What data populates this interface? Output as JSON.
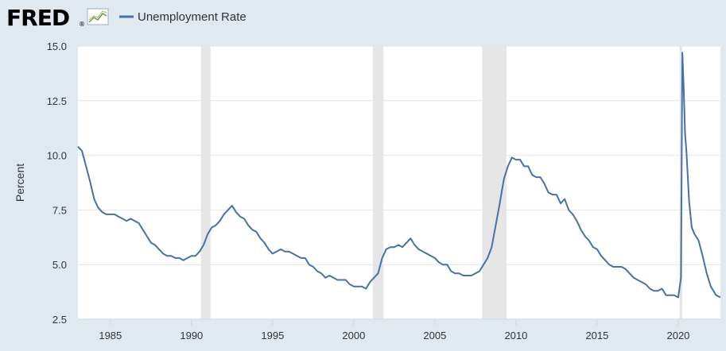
{
  "header": {
    "logo_text": "FRED",
    "logo_mark": "®",
    "logo_icon": "fred-graph-icon",
    "legend_label": "Unemployment Rate"
  },
  "chart_data": {
    "type": "line",
    "title": "",
    "xlabel": "",
    "ylabel": "Percent",
    "xlim": [
      1983.0,
      2022.6
    ],
    "ylim": [
      2.5,
      15.0
    ],
    "y_ticks": [
      2.5,
      5.0,
      7.5,
      10.0,
      12.5,
      15.0
    ],
    "y_tick_labels": [
      "2.5",
      "5.0",
      "7.5",
      "10.0",
      "12.5",
      "15.0"
    ],
    "x_ticks": [
      1985,
      1990,
      1995,
      2000,
      2005,
      2010,
      2015,
      2020
    ],
    "x_tick_labels": [
      "1985",
      "1990",
      "1995",
      "2000",
      "2005",
      "2010",
      "2015",
      "2020"
    ],
    "grid": "horizontal",
    "legend_position": "top-left",
    "recessions": [
      [
        1990.58,
        1991.17
      ],
      [
        2001.17,
        2001.83
      ],
      [
        2007.92,
        2009.42
      ],
      [
        2020.08,
        2020.25
      ]
    ],
    "colors": {
      "line": "#4572a7",
      "recession": "#e6e6e6",
      "background": "#e1e9f0",
      "plot": "#ffffff",
      "grid": "#e6e6e6"
    },
    "series": [
      {
        "name": "Unemployment Rate",
        "points": [
          [
            1983.0,
            10.4
          ],
          [
            1983.25,
            10.2
          ],
          [
            1983.5,
            9.5
          ],
          [
            1983.75,
            8.8
          ],
          [
            1984.0,
            8.0
          ],
          [
            1984.25,
            7.6
          ],
          [
            1984.5,
            7.4
          ],
          [
            1984.75,
            7.3
          ],
          [
            1985.0,
            7.3
          ],
          [
            1985.25,
            7.3
          ],
          [
            1985.5,
            7.2
          ],
          [
            1985.75,
            7.1
          ],
          [
            1986.0,
            7.0
          ],
          [
            1986.25,
            7.1
          ],
          [
            1986.5,
            7.0
          ],
          [
            1986.75,
            6.9
          ],
          [
            1987.0,
            6.6
          ],
          [
            1987.25,
            6.3
          ],
          [
            1987.5,
            6.0
          ],
          [
            1987.75,
            5.9
          ],
          [
            1988.0,
            5.7
          ],
          [
            1988.25,
            5.5
          ],
          [
            1988.5,
            5.4
          ],
          [
            1988.75,
            5.4
          ],
          [
            1989.0,
            5.3
          ],
          [
            1989.25,
            5.3
          ],
          [
            1989.5,
            5.2
          ],
          [
            1989.75,
            5.3
          ],
          [
            1990.0,
            5.4
          ],
          [
            1990.25,
            5.4
          ],
          [
            1990.5,
            5.6
          ],
          [
            1990.75,
            5.9
          ],
          [
            1991.0,
            6.4
          ],
          [
            1991.25,
            6.7
          ],
          [
            1991.5,
            6.8
          ],
          [
            1991.75,
            7.0
          ],
          [
            1992.0,
            7.3
          ],
          [
            1992.25,
            7.5
          ],
          [
            1992.5,
            7.7
          ],
          [
            1992.75,
            7.4
          ],
          [
            1993.0,
            7.2
          ],
          [
            1993.25,
            7.1
          ],
          [
            1993.5,
            6.8
          ],
          [
            1993.75,
            6.6
          ],
          [
            1994.0,
            6.5
          ],
          [
            1994.25,
            6.2
          ],
          [
            1994.5,
            6.0
          ],
          [
            1994.75,
            5.7
          ],
          [
            1995.0,
            5.5
          ],
          [
            1995.25,
            5.6
          ],
          [
            1995.5,
            5.7
          ],
          [
            1995.75,
            5.6
          ],
          [
            1996.0,
            5.6
          ],
          [
            1996.25,
            5.5
          ],
          [
            1996.5,
            5.4
          ],
          [
            1996.75,
            5.3
          ],
          [
            1997.0,
            5.3
          ],
          [
            1997.25,
            5.0
          ],
          [
            1997.5,
            4.9
          ],
          [
            1997.75,
            4.7
          ],
          [
            1998.0,
            4.6
          ],
          [
            1998.25,
            4.4
          ],
          [
            1998.5,
            4.5
          ],
          [
            1998.75,
            4.4
          ],
          [
            1999.0,
            4.3
          ],
          [
            1999.25,
            4.3
          ],
          [
            1999.5,
            4.3
          ],
          [
            1999.75,
            4.1
          ],
          [
            2000.0,
            4.0
          ],
          [
            2000.25,
            4.0
          ],
          [
            2000.5,
            4.0
          ],
          [
            2000.75,
            3.9
          ],
          [
            2001.0,
            4.2
          ],
          [
            2001.25,
            4.4
          ],
          [
            2001.5,
            4.6
          ],
          [
            2001.75,
            5.3
          ],
          [
            2002.0,
            5.7
          ],
          [
            2002.25,
            5.8
          ],
          [
            2002.5,
            5.8
          ],
          [
            2002.75,
            5.9
          ],
          [
            2003.0,
            5.8
          ],
          [
            2003.25,
            6.0
          ],
          [
            2003.5,
            6.2
          ],
          [
            2003.75,
            5.9
          ],
          [
            2004.0,
            5.7
          ],
          [
            2004.25,
            5.6
          ],
          [
            2004.5,
            5.5
          ],
          [
            2004.75,
            5.4
          ],
          [
            2005.0,
            5.3
          ],
          [
            2005.25,
            5.1
          ],
          [
            2005.5,
            5.0
          ],
          [
            2005.75,
            5.0
          ],
          [
            2006.0,
            4.7
          ],
          [
            2006.25,
            4.6
          ],
          [
            2006.5,
            4.6
          ],
          [
            2006.75,
            4.5
          ],
          [
            2007.0,
            4.5
          ],
          [
            2007.25,
            4.5
          ],
          [
            2007.5,
            4.6
          ],
          [
            2007.75,
            4.7
          ],
          [
            2008.0,
            5.0
          ],
          [
            2008.25,
            5.3
          ],
          [
            2008.5,
            5.8
          ],
          [
            2008.75,
            6.8
          ],
          [
            2009.0,
            7.8
          ],
          [
            2009.25,
            8.9
          ],
          [
            2009.5,
            9.5
          ],
          [
            2009.75,
            9.9
          ],
          [
            2010.0,
            9.8
          ],
          [
            2010.25,
            9.8
          ],
          [
            2010.5,
            9.5
          ],
          [
            2010.75,
            9.5
          ],
          [
            2011.0,
            9.1
          ],
          [
            2011.25,
            9.0
          ],
          [
            2011.5,
            9.0
          ],
          [
            2011.75,
            8.7
          ],
          [
            2012.0,
            8.3
          ],
          [
            2012.25,
            8.2
          ],
          [
            2012.5,
            8.2
          ],
          [
            2012.75,
            7.8
          ],
          [
            2013.0,
            8.0
          ],
          [
            2013.25,
            7.5
          ],
          [
            2013.5,
            7.3
          ],
          [
            2013.75,
            7.0
          ],
          [
            2014.0,
            6.6
          ],
          [
            2014.25,
            6.3
          ],
          [
            2014.5,
            6.1
          ],
          [
            2014.75,
            5.8
          ],
          [
            2015.0,
            5.7
          ],
          [
            2015.25,
            5.4
          ],
          [
            2015.5,
            5.2
          ],
          [
            2015.75,
            5.0
          ],
          [
            2016.0,
            4.9
          ],
          [
            2016.25,
            4.9
          ],
          [
            2016.5,
            4.9
          ],
          [
            2016.75,
            4.8
          ],
          [
            2017.0,
            4.6
          ],
          [
            2017.25,
            4.4
          ],
          [
            2017.5,
            4.3
          ],
          [
            2017.75,
            4.2
          ],
          [
            2018.0,
            4.1
          ],
          [
            2018.25,
            3.9
          ],
          [
            2018.5,
            3.8
          ],
          [
            2018.75,
            3.8
          ],
          [
            2019.0,
            3.9
          ],
          [
            2019.25,
            3.6
          ],
          [
            2019.5,
            3.6
          ],
          [
            2019.75,
            3.6
          ],
          [
            2020.0,
            3.5
          ],
          [
            2020.17,
            4.4
          ],
          [
            2020.25,
            14.7
          ],
          [
            2020.33,
            13.2
          ],
          [
            2020.42,
            11.0
          ],
          [
            2020.5,
            10.2
          ],
          [
            2020.67,
            7.9
          ],
          [
            2020.83,
            6.7
          ],
          [
            2021.0,
            6.4
          ],
          [
            2021.25,
            6.1
          ],
          [
            2021.5,
            5.4
          ],
          [
            2021.75,
            4.6
          ],
          [
            2022.0,
            4.0
          ],
          [
            2022.17,
            3.8
          ],
          [
            2022.33,
            3.6
          ],
          [
            2022.6,
            3.5
          ]
        ]
      }
    ]
  }
}
